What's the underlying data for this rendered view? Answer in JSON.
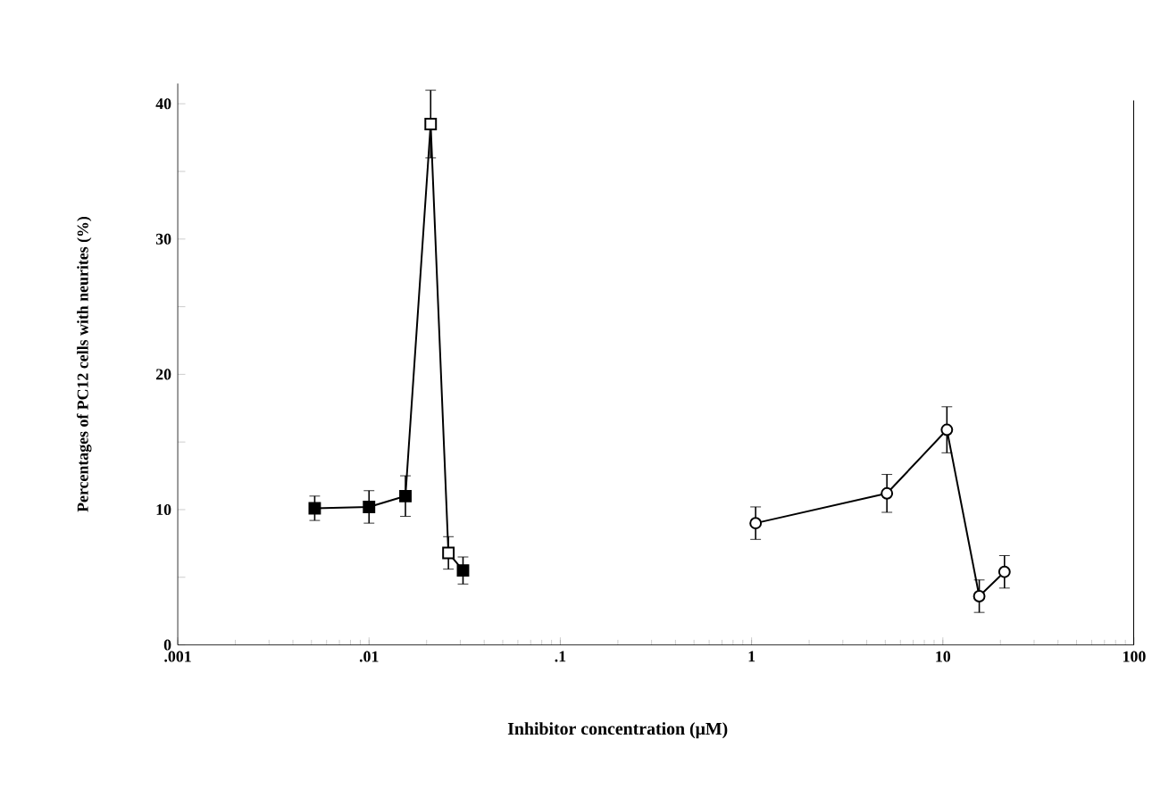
{
  "chart_data": {
    "type": "line",
    "xlabel": "Inhibitor concentration (μM)",
    "ylabel": "Percentages of PC12 cells with neurites (%)",
    "log": "x",
    "xlim": [
      0.001,
      100
    ],
    "ylim": [
      0,
      41.5
    ],
    "xticks": [
      {
        "value": 0.001,
        "label": ".001"
      },
      {
        "value": 0.01,
        "label": ".01"
      },
      {
        "value": 0.1,
        "label": ".1"
      },
      {
        "value": 1,
        "label": "1"
      },
      {
        "value": 10,
        "label": "10"
      },
      {
        "value": 100,
        "label": "100"
      }
    ],
    "yticks": [
      0,
      {
        "value": 5,
        "label": null
      },
      10,
      {
        "value": 15,
        "label": null
      },
      20,
      {
        "value": 25,
        "label": null
      },
      30,
      {
        "value": 35,
        "label": null
      },
      40
    ],
    "line_style": "solid",
    "series": [
      {
        "color": "#000000",
        "marker": "square",
        "x": [
          0.0052,
          0.01,
          0.0155,
          0.021,
          0.026,
          0.031
        ],
        "values": [
          10.1,
          10.2,
          11.0,
          38.5,
          6.8,
          5.5
        ],
        "errors": [
          0.9,
          1.2,
          1.5,
          2.5,
          1.2,
          1.0
        ],
        "colors": [
          "#000000",
          "#000000",
          "#000000",
          "#ffffff",
          "#ffffff",
          "#000000"
        ]
      },
      {
        "color": "#000000",
        "marker": "circle",
        "x": [
          1.05,
          5.1,
          10.5,
          15.5,
          21
        ],
        "values": [
          9.0,
          11.2,
          15.9,
          3.6,
          5.4
        ],
        "errors": [
          1.2,
          1.4,
          1.7,
          1.2,
          1.2
        ],
        "colors": [
          "#ffffff",
          "#ffffff",
          "#ffffff",
          "#ffffff",
          "#ffffff"
        ]
      }
    ]
  }
}
